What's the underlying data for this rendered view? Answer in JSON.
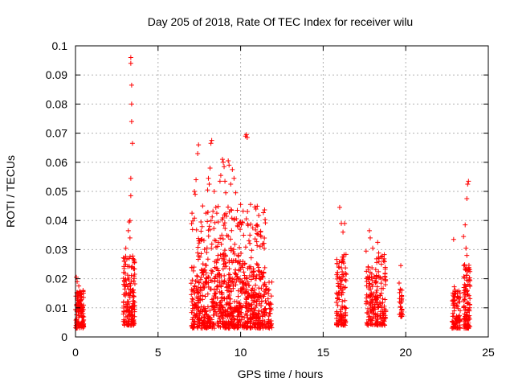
{
  "chart_data": {
    "type": "scatter",
    "title": "Day 205 of 2018, Rate Of TEC Index for receiver wilu",
    "xlabel": "GPS time / hours",
    "ylabel": "ROTI / TECUs",
    "xlim": [
      0,
      25
    ],
    "ylim": [
      0,
      0.1
    ],
    "xticks": [
      "0",
      "5",
      "10",
      "15",
      "20",
      "25"
    ],
    "yticks": [
      "0",
      "0.01",
      "0.02",
      "0.03",
      "0.04",
      "0.05",
      "0.06",
      "0.07",
      "0.08",
      "0.09",
      "0.1"
    ],
    "grid": true,
    "marker": "+",
    "color": "#ff0000",
    "clusters": [
      {
        "x_range": [
          0.0,
          0.5
        ],
        "y_range": [
          0.003,
          0.016
        ],
        "count": 120
      },
      {
        "x_range": [
          2.9,
          3.6
        ],
        "y_range": [
          0.004,
          0.028
        ],
        "count": 160
      },
      {
        "x_range": [
          7.0,
          11.9
        ],
        "y_range": [
          0.003,
          0.02
        ],
        "count": 700
      },
      {
        "x_range": [
          7.0,
          11.5
        ],
        "y_range": [
          0.02,
          0.045
        ],
        "count": 260
      },
      {
        "x_range": [
          15.8,
          16.4
        ],
        "y_range": [
          0.004,
          0.03
        ],
        "count": 120
      },
      {
        "x_range": [
          17.6,
          18.2
        ],
        "y_range": [
          0.004,
          0.025
        ],
        "count": 100
      },
      {
        "x_range": [
          18.2,
          18.8
        ],
        "y_range": [
          0.004,
          0.029
        ],
        "count": 110
      },
      {
        "x_range": [
          19.6,
          19.8
        ],
        "y_range": [
          0.007,
          0.018
        ],
        "count": 30
      },
      {
        "x_range": [
          22.8,
          23.3
        ],
        "y_range": [
          0.003,
          0.018
        ],
        "count": 90
      },
      {
        "x_range": [
          23.5,
          23.9
        ],
        "y_range": [
          0.003,
          0.025
        ],
        "count": 110
      }
    ],
    "outliers": [
      {
        "x": 3.35,
        "y": 0.096
      },
      {
        "x": 3.35,
        "y": 0.094
      },
      {
        "x": 3.4,
        "y": 0.0865
      },
      {
        "x": 3.4,
        "y": 0.08
      },
      {
        "x": 3.4,
        "y": 0.074
      },
      {
        "x": 3.45,
        "y": 0.0665
      },
      {
        "x": 3.35,
        "y": 0.0545
      },
      {
        "x": 3.35,
        "y": 0.0485
      },
      {
        "x": 3.3,
        "y": 0.04
      },
      {
        "x": 3.25,
        "y": 0.0395
      },
      {
        "x": 3.2,
        "y": 0.0365
      },
      {
        "x": 3.3,
        "y": 0.034
      },
      {
        "x": 7.2,
        "y": 0.05
      },
      {
        "x": 7.25,
        "y": 0.049
      },
      {
        "x": 7.3,
        "y": 0.054
      },
      {
        "x": 7.4,
        "y": 0.063
      },
      {
        "x": 7.45,
        "y": 0.066
      },
      {
        "x": 7.6,
        "y": 0.0395
      },
      {
        "x": 7.7,
        "y": 0.045
      },
      {
        "x": 7.9,
        "y": 0.0425
      },
      {
        "x": 8.0,
        "y": 0.0505
      },
      {
        "x": 8.05,
        "y": 0.0545
      },
      {
        "x": 8.1,
        "y": 0.0525
      },
      {
        "x": 8.15,
        "y": 0.058
      },
      {
        "x": 8.2,
        "y": 0.0665
      },
      {
        "x": 8.25,
        "y": 0.0675
      },
      {
        "x": 8.4,
        "y": 0.05
      },
      {
        "x": 8.5,
        "y": 0.0445
      },
      {
        "x": 8.65,
        "y": 0.0395
      },
      {
        "x": 8.75,
        "y": 0.0535
      },
      {
        "x": 8.8,
        "y": 0.0555
      },
      {
        "x": 8.9,
        "y": 0.061
      },
      {
        "x": 8.95,
        "y": 0.06
      },
      {
        "x": 9.0,
        "y": 0.0585
      },
      {
        "x": 9.05,
        "y": 0.0535
      },
      {
        "x": 9.1,
        "y": 0.0495
      },
      {
        "x": 9.25,
        "y": 0.0605
      },
      {
        "x": 9.3,
        "y": 0.059
      },
      {
        "x": 9.4,
        "y": 0.0525
      },
      {
        "x": 9.45,
        "y": 0.0435
      },
      {
        "x": 9.5,
        "y": 0.0575
      },
      {
        "x": 9.6,
        "y": 0.0545
      },
      {
        "x": 9.7,
        "y": 0.0495
      },
      {
        "x": 9.8,
        "y": 0.0435
      },
      {
        "x": 10.0,
        "y": 0.0455
      },
      {
        "x": 10.1,
        "y": 0.0395
      },
      {
        "x": 10.3,
        "y": 0.069
      },
      {
        "x": 10.35,
        "y": 0.0695
      },
      {
        "x": 10.4,
        "y": 0.0685
      },
      {
        "x": 10.6,
        "y": 0.0455
      },
      {
        "x": 11.0,
        "y": 0.0385
      },
      {
        "x": 11.2,
        "y": 0.036
      },
      {
        "x": 16.0,
        "y": 0.0445
      },
      {
        "x": 16.1,
        "y": 0.039
      },
      {
        "x": 16.2,
        "y": 0.036
      },
      {
        "x": 16.3,
        "y": 0.039
      },
      {
        "x": 17.6,
        "y": 0.0295
      },
      {
        "x": 17.8,
        "y": 0.0365
      },
      {
        "x": 17.85,
        "y": 0.034
      },
      {
        "x": 18.0,
        "y": 0.0305
      },
      {
        "x": 18.3,
        "y": 0.0325
      },
      {
        "x": 18.5,
        "y": 0.0275
      },
      {
        "x": 19.7,
        "y": 0.0245
      },
      {
        "x": 19.6,
        "y": 0.0185
      },
      {
        "x": 22.9,
        "y": 0.0335
      },
      {
        "x": 23.5,
        "y": 0.0345
      },
      {
        "x": 23.6,
        "y": 0.0385
      },
      {
        "x": 23.7,
        "y": 0.0475
      },
      {
        "x": 23.75,
        "y": 0.0525
      },
      {
        "x": 23.8,
        "y": 0.0535
      },
      {
        "x": 23.65,
        "y": 0.0305
      },
      {
        "x": 23.7,
        "y": 0.028
      },
      {
        "x": 0.05,
        "y": 0.0205
      },
      {
        "x": 0.1,
        "y": 0.019
      },
      {
        "x": 0.2,
        "y": 0.0175
      },
      {
        "x": 3.05,
        "y": 0.0305
      },
      {
        "x": 2.95,
        "y": 0.0235
      }
    ]
  }
}
